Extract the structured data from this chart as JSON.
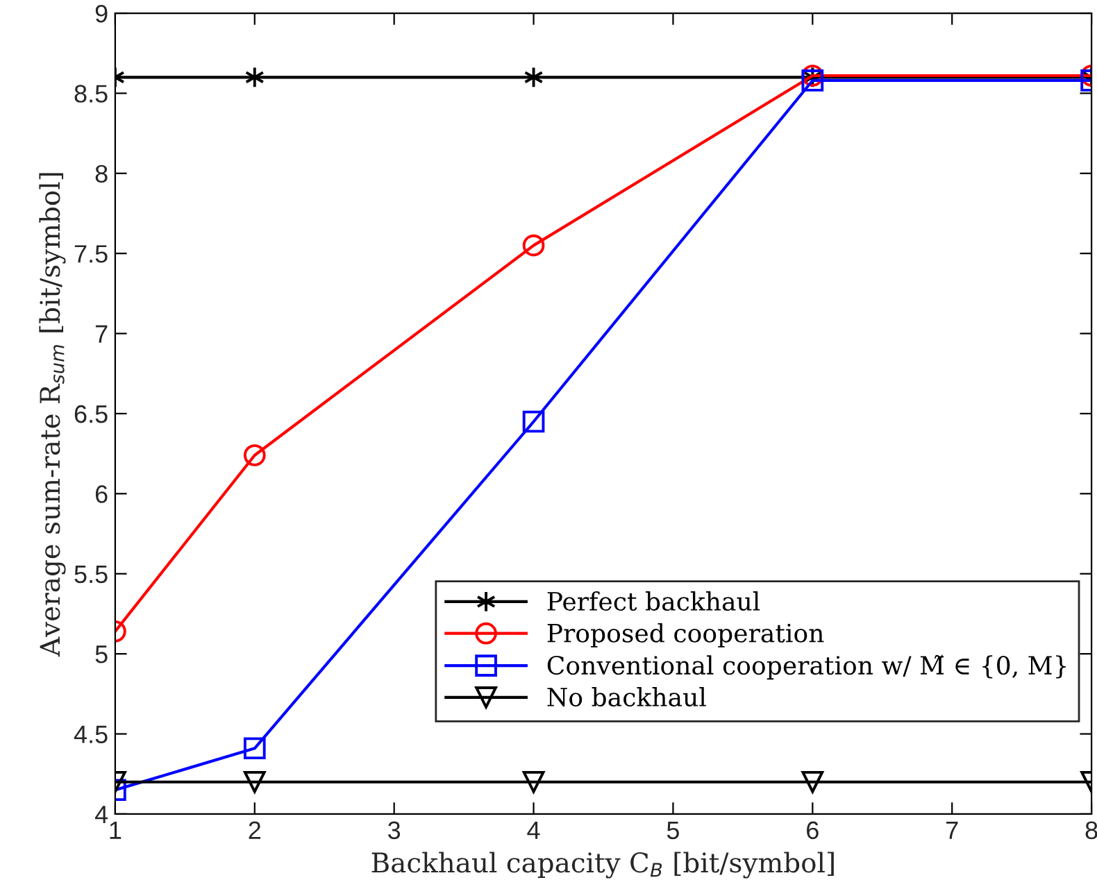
{
  "chart_data": {
    "type": "line",
    "xlabel": "Backhaul capacity C$_{B}$ [bit/symbol]",
    "ylabel": "Average sum-rate R$_{sum}$ [bit/symbol]",
    "x": [
      1,
      2,
      4,
      6,
      8
    ],
    "series": [
      {
        "name": "Perfect backhaul",
        "color": "#000000",
        "marker": "cross",
        "values": [
          8.6,
          8.6,
          8.6,
          8.6,
          8.6
        ]
      },
      {
        "name": "Proposed cooperation",
        "color": "#ff0000",
        "marker": "circle",
        "values": [
          5.14,
          6.24,
          7.55,
          8.61,
          8.61
        ]
      },
      {
        "name": "Conventional cooperation w/ M̃ ∈ {0, M}",
        "color": "#0000ff",
        "marker": "square",
        "values": [
          4.15,
          4.41,
          6.45,
          8.58,
          8.58
        ]
      },
      {
        "name": "No backhaul",
        "color": "#000000",
        "marker": "triangle",
        "values": [
          4.2,
          4.2,
          4.2,
          4.2,
          4.2
        ]
      }
    ],
    "xlim": [
      1,
      8
    ],
    "xticks": [
      1,
      2,
      3,
      4,
      5,
      6,
      7,
      8
    ],
    "ylim": [
      4,
      9
    ],
    "yticks": [
      4,
      4.5,
      5,
      5.5,
      6,
      6.5,
      7,
      7.5,
      8,
      8.5,
      9
    ],
    "grid": false,
    "legend": "bottom right",
    "line_style": "solid"
  }
}
